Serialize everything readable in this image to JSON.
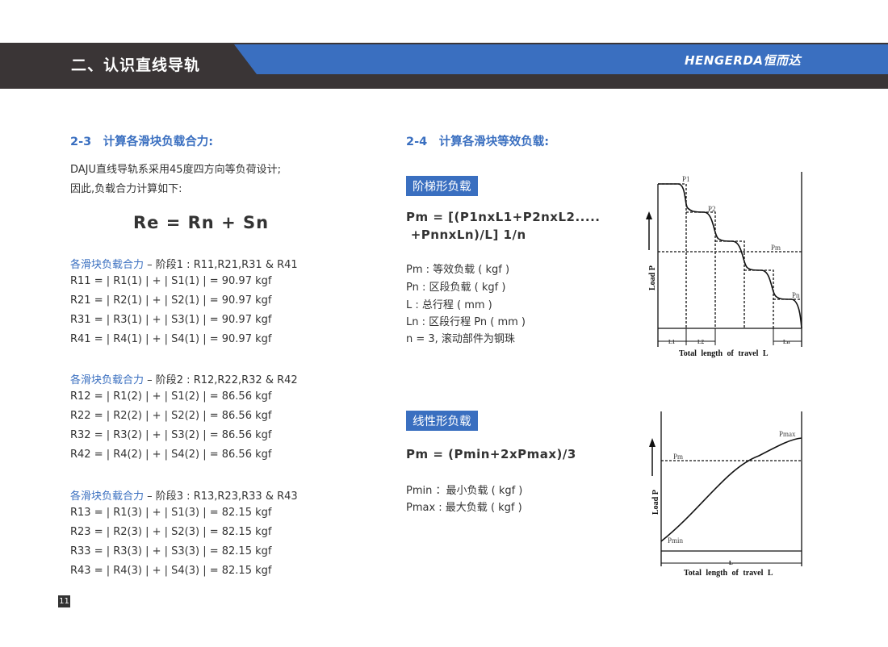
{
  "header": {
    "title": "二、认识直线导轨",
    "brand": "HENGERDA恒而达",
    "colors": {
      "dark": "#3a3536",
      "blue": "#3a6fc0"
    }
  },
  "left": {
    "section_title": "2-3　计算各滑块负载合力:",
    "intro": [
      "DAJU直线导轨系采用45度四方向等负荷设计;",
      "因此,负载合力计算如下:"
    ],
    "formula": "Re = Rn + Sn",
    "groups": [
      {
        "label": "各滑块负载合力",
        "stage": " – 阶段1 : R11,R21,R31 & R41",
        "lines": [
          "R11 = | R1(1) | + | S1(1) | = 90.97 kgf",
          "R21 = | R2(1) | + | S2(1) | = 90.97 kgf",
          "R31 = | R3(1) | + | S3(1) | = 90.97 kgf",
          "R41 = | R4(1) | + | S4(1) | = 90.97 kgf"
        ]
      },
      {
        "label": "各滑块负载合力",
        "stage": " – 阶段2 : R12,R22,R32 & R42",
        "lines": [
          "R12 = | R1(2) | + | S1(2) | = 86.56 kgf",
          "R22 = | R2(2) | + | S2(2) | = 86.56 kgf",
          "R32 = | R3(2) | + | S3(2) | = 86.56 kgf",
          "R42 = | R4(2) | + | S4(2) | = 86.56 kgf"
        ]
      },
      {
        "label": "各滑块负载合力",
        "stage": " – 阶段3 : R13,R23,R33 & R43",
        "lines": [
          "R13 = | R1(3) | + | S1(3) | = 82.15 kgf",
          "R23 = | R2(3) | + | S2(3) | = 82.15 kgf",
          "R33 = | R3(3) | + | S3(3) | = 82.15 kgf",
          "R43 = | R4(3) | + | S4(3) | = 82.15 kgf"
        ]
      }
    ]
  },
  "right": {
    "section_title": "2-4　计算各滑块等效负载:",
    "step": {
      "tag": "阶梯形负载",
      "formula": [
        "Pm = [(P1nxL1+P2nxL2.....",
        " +PnnxLn)/L] 1/n"
      ],
      "defs": [
        "Pm : 等效负载 ( kgf )",
        "Pn : 区段负载 ( kgf )",
        "L : 总行程 ( mm )",
        "Ln : 区段行程 Pn ( mm )",
        "n = 3, 滚动部件为钢珠"
      ],
      "diagram": {
        "p1": "P1",
        "p2": "P2",
        "pm": "Pm",
        "pn": "Pn",
        "l1": "L1",
        "l2": "L2",
        "ln": "Ln",
        "ylabel": "Load P",
        "xlabel": "Total length of travel L"
      }
    },
    "linear": {
      "tag": "线性形负载",
      "formula": "Pm = (Pmin+2xPmax)/3",
      "defs": [
        "Pmin ：最小负载 ( kgf )",
        "Pmax : 最大负载 ( kgf )"
      ],
      "diagram": {
        "pmax": "Pmax",
        "pm": "Pm",
        "pmin": "Pmin",
        "l": "L",
        "ylabel": "Load P",
        "xlabel": "Total length of travel L"
      }
    }
  },
  "page_number": "11"
}
